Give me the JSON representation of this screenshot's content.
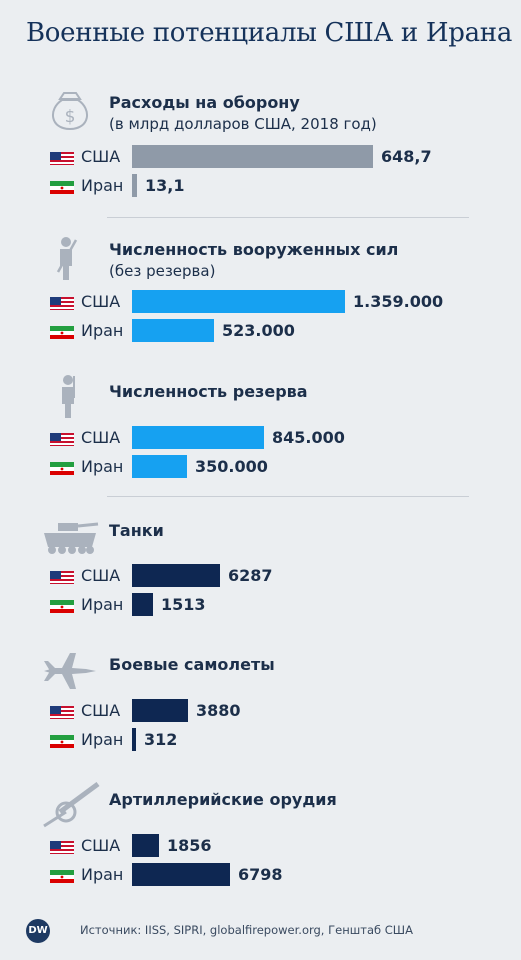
{
  "title": "Военные потенциалы США и Ирана",
  "source": "Источник: IISS, SIPRI, globalfirepower.org, Генштаб США",
  "logo": "DW",
  "colors": {
    "gray": "#8f9aa8",
    "lightblue": "#16a1f1",
    "navy": "#0e2752"
  },
  "chart_data": [
    {
      "type": "bar",
      "title": "Расходы на оборону",
      "subtitle": "(в млрд долларов США, 2018 год)",
      "icon": "money-bag-icon",
      "color": "gray",
      "categories": [
        "США",
        "Иран"
      ],
      "values": [
        648.7,
        13.1
      ],
      "labels": [
        "648,7",
        "13,1"
      ]
    },
    {
      "type": "bar",
      "title": "Численность вооруженных сил",
      "subtitle": "(без резерва)",
      "icon": "soldier-icon",
      "color": "lightblue",
      "categories": [
        "США",
        "Иран"
      ],
      "values": [
        1359000,
        523000
      ],
      "labels": [
        "1.359.000",
        "523.000"
      ]
    },
    {
      "type": "bar",
      "title": "Численность резерва",
      "subtitle": "",
      "icon": "reserve-soldier-icon",
      "color": "lightblue",
      "categories": [
        "США",
        "Иран"
      ],
      "values": [
        845000,
        350000
      ],
      "labels": [
        "845.000",
        "350.000"
      ]
    },
    {
      "type": "bar",
      "title": "Танки",
      "subtitle": "",
      "icon": "tank-icon",
      "color": "navy",
      "categories": [
        "США",
        "Иран"
      ],
      "values": [
        6287,
        1513
      ],
      "labels": [
        "6287",
        "1513"
      ]
    },
    {
      "type": "bar",
      "title": "Боевые самолеты",
      "subtitle": "",
      "icon": "fighter-jet-icon",
      "color": "navy",
      "categories": [
        "США",
        "Иран"
      ],
      "values": [
        3880,
        312
      ],
      "labels": [
        "3880",
        "312"
      ]
    },
    {
      "type": "bar",
      "title": "Артиллерийские орудия",
      "subtitle": "",
      "icon": "cannon-icon",
      "color": "navy",
      "categories": [
        "США",
        "Иран"
      ],
      "values": [
        1856,
        6798
      ],
      "labels": [
        "1856",
        "6798"
      ]
    }
  ]
}
